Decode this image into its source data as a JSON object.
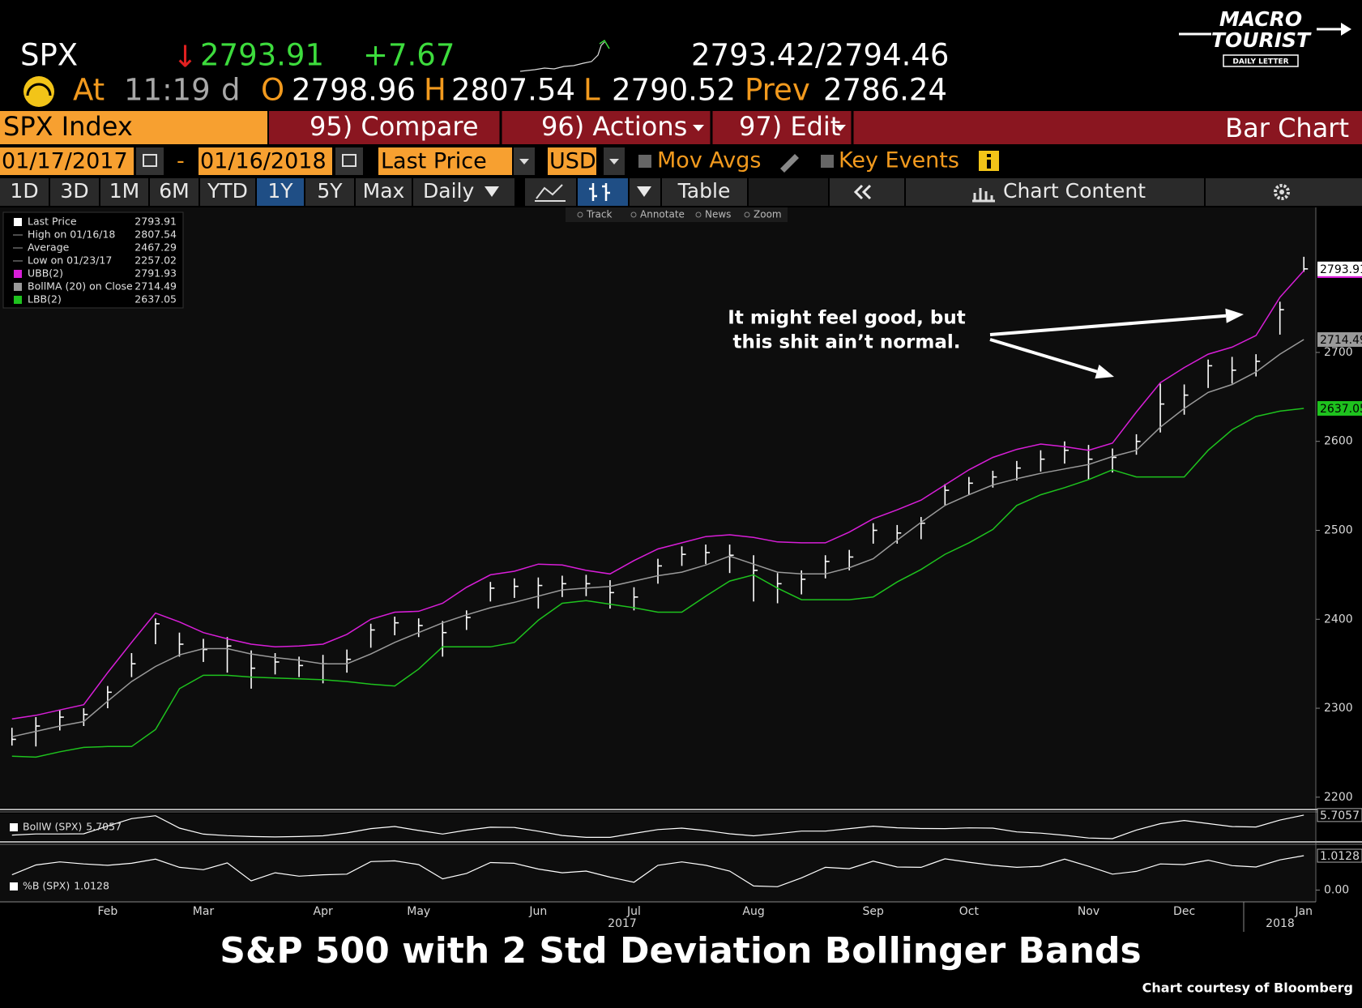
{
  "logo": {
    "line1": "MACRO",
    "line2": "TOURIST",
    "line3": "DAILY LETTER"
  },
  "quote": {
    "ticker": "SPX",
    "arrow": "↓",
    "last": 2793.91,
    "change": "+7.67",
    "bid_ask": "2793.42/2794.46"
  },
  "quote_detail": {
    "at": "At",
    "time": "11:19",
    "flag": "d",
    "open_label": "O",
    "open": 2798.96,
    "high_label": "H",
    "high": 2807.54,
    "low_label": "L",
    "low": 2790.52,
    "prev_label": "Prev",
    "prev": 2786.24
  },
  "toolbar": {
    "security": "SPX Index",
    "compare": "95) Compare",
    "actions": "96) Actions",
    "edit": "97) Edit",
    "chart_type": "Bar Chart"
  },
  "controls": {
    "start_date": "01/17/2017",
    "dash": "-",
    "end_date": "01/16/2018",
    "field": "Last Price",
    "currency": "USD",
    "mov_avgs": "Mov Avgs",
    "key_events": "Key Events"
  },
  "periods": [
    "1D",
    "3D",
    "1M",
    "6M",
    "YTD",
    "1Y",
    "5Y",
    "Max"
  ],
  "selected_period": "1Y",
  "frequency": "Daily",
  "view": {
    "table": "Table",
    "chart_content": "Chart Content"
  },
  "chart_tools": [
    "Track",
    "Annotate",
    "News",
    "Zoom"
  ],
  "chart_data": [
    {
      "type": "ohlc",
      "title": "S&P 500 with 2 Std Deviation Bollinger Bands",
      "source": "Chart courtesy of Bloomberg",
      "annotation": [
        "It might feel good, but",
        "this shit ain’t normal."
      ],
      "categories": [
        null,
        null,
        null,
        null,
        "Feb",
        null,
        null,
        null,
        "Mar",
        null,
        null,
        null,
        null,
        "Apr",
        null,
        null,
        null,
        "May",
        null,
        null,
        null,
        null,
        "Jun",
        null,
        null,
        null,
        "Jul",
        null,
        null,
        null,
        null,
        "Aug",
        null,
        null,
        null,
        null,
        "Sep",
        null,
        null,
        null,
        "Oct",
        null,
        null,
        null,
        null,
        "Nov",
        null,
        null,
        null,
        "Dec",
        null,
        null,
        null,
        null,
        "Jan"
      ],
      "x_group_labels": [
        "2017",
        "2018"
      ],
      "ylim": [
        2188,
        2863
      ],
      "yticks": [
        2200,
        2300,
        2400,
        2500,
        2600,
        2700
      ],
      "grid": false,
      "series": [
        {
          "name": "Last Price",
          "type": "ohlc",
          "color": "#ffffff",
          "values": [
            2265,
            2280,
            2290,
            2293,
            2318,
            2350,
            2395,
            2372,
            2366,
            2370,
            2345,
            2352,
            2348,
            2350,
            2355,
            2388,
            2396,
            2393,
            2385,
            2402,
            2435,
            2437,
            2438,
            2440,
            2440,
            2430,
            2425,
            2460,
            2473,
            2475,
            2472,
            2455,
            2440,
            2445,
            2465,
            2470,
            2500,
            2497,
            2508,
            2545,
            2553,
            2560,
            2570,
            2580,
            2590,
            2580,
            2582,
            2600,
            2642,
            2652,
            2685,
            2680,
            2690,
            2748,
            2793.91
          ],
          "high": [
            2278,
            2290,
            2298,
            2300,
            2325,
            2362,
            2401,
            2385,
            2378,
            2380,
            2365,
            2362,
            2358,
            2360,
            2366,
            2395,
            2403,
            2401,
            2398,
            2410,
            2442,
            2446,
            2447,
            2449,
            2450,
            2444,
            2436,
            2468,
            2482,
            2484,
            2484,
            2472,
            2452,
            2455,
            2472,
            2478,
            2508,
            2506,
            2515,
            2552,
            2560,
            2567,
            2578,
            2590,
            2600,
            2596,
            2592,
            2608,
            2665,
            2664,
            2692,
            2695,
            2698,
            2757,
            2807.54
          ],
          "low": [
            2258,
            2257.02,
            2275,
            2280,
            2300,
            2335,
            2372,
            2358,
            2352,
            2340,
            2322,
            2338,
            2335,
            2328,
            2340,
            2368,
            2382,
            2380,
            2358,
            2388,
            2420,
            2424,
            2412,
            2425,
            2426,
            2412,
            2410,
            2440,
            2460,
            2462,
            2452,
            2420,
            2418,
            2428,
            2446,
            2455,
            2485,
            2485,
            2490,
            2528,
            2540,
            2548,
            2556,
            2566,
            2575,
            2557,
            2565,
            2585,
            2610,
            2630,
            2660,
            2665,
            2673,
            2720,
            2790.52
          ]
        },
        {
          "name": "UBB(2)",
          "type": "line",
          "color": "#d81ed8",
          "values": [
            2288,
            2292,
            2298,
            2304,
            2340,
            2374,
            2407,
            2397,
            2385,
            2378,
            2372,
            2369,
            2370,
            2372,
            2383,
            2400,
            2408,
            2409,
            2418,
            2436,
            2450,
            2454,
            2462,
            2461,
            2455,
            2451,
            2466,
            2479,
            2486,
            2493,
            2495,
            2492,
            2487,
            2486,
            2486,
            2498,
            2513,
            2523,
            2534,
            2551,
            2568,
            2582,
            2591,
            2597,
            2594,
            2590,
            2598,
            2633,
            2666,
            2683,
            2698,
            2706,
            2719,
            2762,
            2791.93
          ]
        },
        {
          "name": "BollMA (20) on Close",
          "type": "line",
          "color": "#9a9a9a",
          "values": [
            2268,
            2274,
            2280,
            2285,
            2308,
            2330,
            2347,
            2360,
            2367,
            2367,
            2361,
            2357,
            2354,
            2350,
            2350,
            2361,
            2374,
            2385,
            2396,
            2405,
            2413,
            2419,
            2426,
            2433,
            2435,
            2437,
            2443,
            2449,
            2453,
            2461,
            2471,
            2462,
            2453,
            2451,
            2451,
            2458,
            2468,
            2489,
            2509,
            2528,
            2540,
            2551,
            2558,
            2564,
            2569,
            2574,
            2583,
            2590,
            2616,
            2637,
            2655,
            2664,
            2678,
            2698,
            2714.49
          ]
        },
        {
          "name": "LBB(2)",
          "type": "line",
          "color": "#1ec21e",
          "values": [
            2246,
            2245,
            2251,
            2256,
            2257,
            2257,
            2276,
            2322,
            2337,
            2337,
            2335,
            2334,
            2333,
            2332,
            2330,
            2327,
            2325,
            2344,
            2369,
            2369,
            2369,
            2374,
            2399,
            2418,
            2421,
            2417,
            2413,
            2408,
            2408,
            2426,
            2443,
            2450,
            2435,
            2422,
            2422,
            2422,
            2425,
            2442,
            2456,
            2473,
            2486,
            2501,
            2528,
            2540,
            2548,
            2557,
            2568,
            2560,
            2560,
            2560,
            2590,
            2613,
            2628,
            2634,
            2637.05
          ]
        }
      ],
      "stats": [
        {
          "label": "High on 01/16/18",
          "value": 2807.54
        },
        {
          "label": "Average",
          "value": 2467.29
        },
        {
          "label": "Low on 01/23/17",
          "value": 2257.02
        }
      ]
    },
    {
      "type": "line",
      "ylim": [
        1,
        6
      ],
      "series": [
        {
          "name": "BollW (SPX)",
          "color": "#ffffff",
          "values": [
            1.85,
            2.07,
            2.06,
            2.1,
            3.6,
            5.02,
            5.58,
            3.18,
            2.03,
            1.73,
            1.57,
            1.48,
            1.57,
            1.7,
            2.26,
            3.09,
            3.5,
            2.73,
            2.05,
            2.79,
            3.36,
            3.31,
            2.6,
            1.77,
            1.4,
            1.4,
            2.17,
            2.9,
            3.18,
            2.72,
            2.1,
            1.71,
            2.12,
            2.61,
            2.61,
            3.09,
            3.57,
            3.25,
            3.11,
            3.09,
            3.23,
            3.18,
            2.46,
            2.22,
            1.79,
            1.28,
            1.16,
            2.82,
            4.05,
            4.66,
            4.07,
            3.49,
            3.4,
            4.74,
            5.7057
          ]
        }
      ]
    },
    {
      "type": "line",
      "ylim": [
        -0.3,
        1.3
      ],
      "yticks": [
        {
          "value": 0,
          "label": "0.00"
        }
      ],
      "series": [
        {
          "name": "%B (SPX)",
          "color": "#ffffff",
          "values": [
            0.45,
            0.74,
            0.83,
            0.77,
            0.73,
            0.79,
            0.91,
            0.67,
            0.6,
            0.8,
            0.27,
            0.51,
            0.41,
            0.45,
            0.47,
            0.84,
            0.86,
            0.75,
            0.33,
            0.49,
            0.81,
            0.79,
            0.62,
            0.51,
            0.56,
            0.38,
            0.23,
            0.73,
            0.83,
            0.73,
            0.56,
            0.12,
            0.1,
            0.36,
            0.67,
            0.63,
            0.85,
            0.68,
            0.67,
            0.92,
            0.82,
            0.73,
            0.67,
            0.7,
            0.91,
            0.7,
            0.47,
            0.55,
            0.77,
            0.75,
            0.88,
            0.72,
            0.68,
            0.89,
            1.0128
          ]
        }
      ]
    }
  ]
}
